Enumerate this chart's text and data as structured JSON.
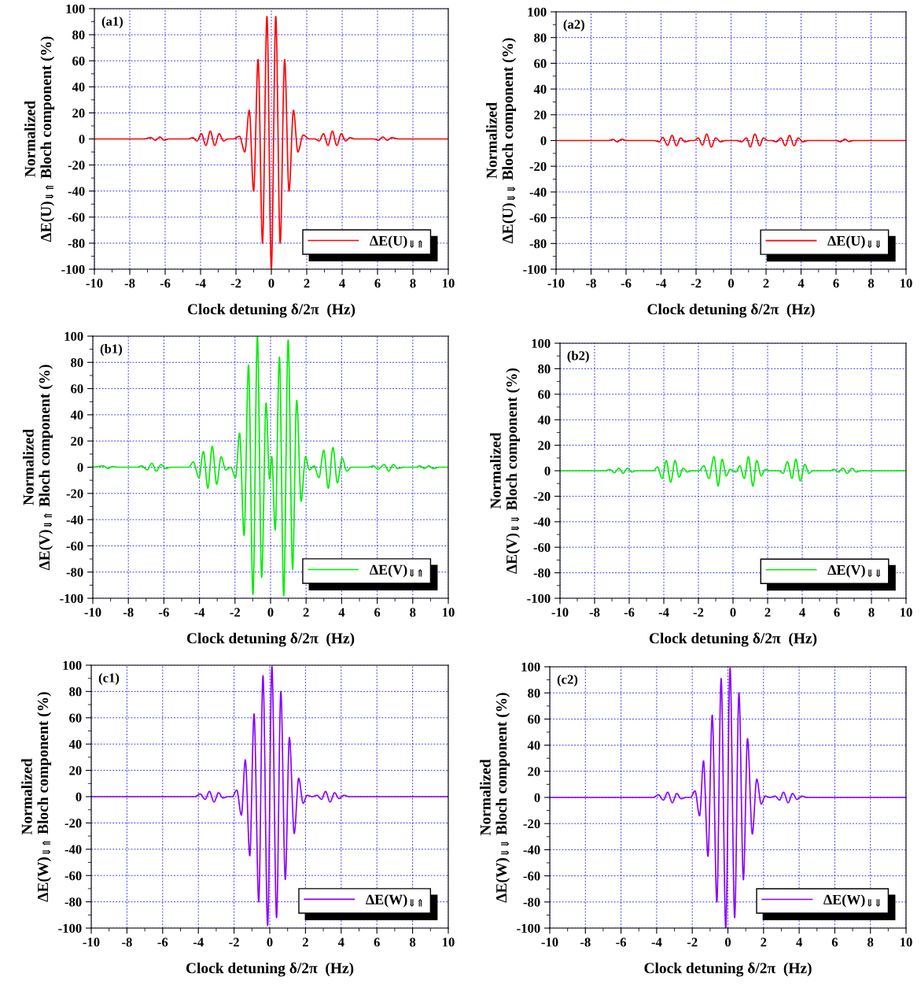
{
  "chart_data": [
    {
      "type": "line",
      "xlabel": "Clock detuning δ/2π  (Hz)",
      "ylabel": "Normalized\nΔE(U)$_{⇓⇑}$ Bloch component (%)",
      "xlim": [
        -10,
        10
      ],
      "xticks": [
        -10,
        -8,
        -6,
        -4,
        -2,
        0,
        2,
        4,
        6,
        8,
        10
      ],
      "ylim": [
        -100,
        100
      ],
      "yticks": [
        -100,
        -80,
        -60,
        -40,
        -20,
        0,
        20,
        40,
        60,
        80,
        100
      ],
      "grid": true,
      "legend": "lower right",
      "annotations": [
        "(a1)"
      ],
      "series": [
        {
          "name": "ΔE(U)$_{⇓⇑}$",
          "color": "#ff0000",
          "x": [
            -10,
            -7.2,
            -6.8,
            -6.55,
            -6.3,
            -6.05,
            -5.8,
            -4.7,
            -4.45,
            -4.2,
            -3.95,
            -3.7,
            -3.45,
            -3.2,
            -2.95,
            -2.7,
            -2.45,
            -2.15,
            -1.8,
            -1.5,
            -1.25,
            -1,
            -0.75,
            -0.5,
            -0.25,
            0,
            0.25,
            0.5,
            0.75,
            1,
            1.25,
            1.5,
            1.8,
            2.15,
            2.45,
            2.7,
            2.95,
            3.2,
            3.45,
            3.7,
            3.95,
            4.2,
            4.45,
            4.7,
            5.8,
            6.05,
            6.3,
            6.55,
            6.8,
            7.2,
            10
          ],
          "values": [
            0,
            0,
            1,
            -1,
            1.5,
            -1,
            0,
            0,
            1,
            -1.5,
            4,
            -5,
            6,
            -5,
            4,
            -1.5,
            0,
            0,
            2,
            -10,
            22,
            -40,
            61,
            -80,
            94,
            -100,
            94,
            -80,
            61,
            -40,
            22,
            -10,
            3,
            0,
            0,
            -1.5,
            4,
            -5,
            6,
            -5,
            4,
            -1.5,
            1,
            0,
            0,
            -1,
            1.5,
            -1,
            1,
            0,
            0
          ]
        }
      ]
    },
    {
      "type": "line",
      "xlabel": "Clock detuning δ/2π  (Hz)",
      "ylabel": "Normalized\nΔE(U)$_{⇓⇓}$ Bloch component (%)",
      "xlim": [
        -10,
        10
      ],
      "xticks": [
        -10,
        -8,
        -6,
        -4,
        -2,
        0,
        2,
        4,
        6,
        8,
        10
      ],
      "ylim": [
        -100,
        100
      ],
      "yticks": [
        -100,
        -80,
        -60,
        -40,
        -20,
        0,
        20,
        40,
        60,
        80,
        100
      ],
      "grid": true,
      "legend": "lower right",
      "annotations": [
        "(a2)"
      ],
      "series": [
        {
          "name": "ΔE(U)$_{⇓⇓}$",
          "color": "#ff0000",
          "x": [
            -10,
            -7,
            -6.75,
            -6.5,
            -6.25,
            -6,
            -4.4,
            -4.1,
            -3.9,
            -3.63,
            -3.37,
            -3.12,
            -2.88,
            -2.63,
            -2.3,
            -2.1,
            -1.88,
            -1.63,
            -1.39,
            -1.13,
            -0.88,
            -0.6,
            -0.3,
            0.3,
            0.6,
            0.88,
            1.1,
            1.36,
            1.63,
            1.85,
            2.1,
            2.3,
            2.6,
            2.85,
            3.1,
            3.34,
            3.6,
            3.84,
            4.1,
            4.4,
            6,
            6.25,
            6.5,
            6.75,
            7,
            10
          ],
          "values": [
            0,
            0,
            0.8,
            -1,
            1,
            0,
            0,
            -1,
            2.4,
            -3.7,
            4,
            -4,
            2,
            -1,
            0,
            0,
            2,
            -3.5,
            5,
            -5,
            2,
            -1,
            0,
            0,
            -1,
            2,
            -5,
            5,
            -4,
            2,
            0,
            0,
            -1,
            2,
            -4,
            4,
            -4,
            2,
            -1,
            0,
            0,
            -1,
            1,
            -0.8,
            0,
            0
          ]
        }
      ]
    },
    {
      "type": "line",
      "xlabel": "Clock detuning δ/2π  (Hz)",
      "ylabel": "Normalized\nΔE(V)$_{⇓⇑}$ Bloch component (%)",
      "xlim": [
        -10,
        10
      ],
      "xticks": [
        -10,
        -8,
        -6,
        -4,
        -2,
        0,
        2,
        4,
        6,
        8,
        10
      ],
      "ylim": [
        -100,
        100
      ],
      "yticks": [
        -100,
        -80,
        -60,
        -40,
        -20,
        0,
        20,
        40,
        60,
        80,
        100
      ],
      "grid": true,
      "legend": "lower right",
      "annotations": [
        "(b1)"
      ],
      "series": [
        {
          "name": "ΔE(V)$_{⇓⇑}$",
          "color": "#00ee00",
          "x": [
            -10,
            -9.4,
            -9.15,
            -8.9,
            -8.6,
            -7.5,
            -7.24,
            -6.94,
            -6.68,
            -6.43,
            -6.16,
            -5.9,
            -5.6,
            -4.6,
            -4.35,
            -4.03,
            -3.78,
            -3.53,
            -3.28,
            -3.03,
            -2.78,
            -2.53,
            -2.24,
            -1.97,
            -1.74,
            -1.49,
            -1.24,
            -0.99,
            -0.74,
            -0.5,
            -0.25,
            -0.06,
            0.07,
            0.26,
            0.5,
            0.74,
            0.99,
            1.24,
            1.47,
            1.72,
            1.97,
            2.18,
            2.45,
            2.72,
            2.99,
            3.25,
            3.51,
            3.76,
            4.03,
            4.29,
            4.55,
            5.5,
            5.78,
            6.05,
            6.4,
            6.65,
            6.91,
            7.15,
            7.5,
            8.2,
            8.4,
            8.65,
            8.9,
            9.15,
            9.5,
            10
          ],
          "values": [
            0,
            1,
            -1,
            0.5,
            0,
            0,
            1,
            -2,
            3,
            -3,
            2,
            -1,
            0,
            0,
            4,
            -8,
            12,
            -16,
            16,
            -13,
            8,
            -2,
            0,
            -8,
            26,
            -52,
            78,
            -97,
            100,
            -84,
            49,
            -9,
            8,
            -48,
            84,
            -98,
            97,
            -78,
            51,
            -26,
            8,
            -2,
            1,
            -8,
            13,
            -16,
            15,
            -12,
            7,
            -3,
            0,
            0,
            1,
            -1.5,
            2,
            -3,
            2,
            -1,
            0,
            0,
            1,
            -1,
            1,
            -1,
            0,
            0
          ]
        }
      ]
    },
    {
      "type": "line",
      "xlabel": "Clock detuning δ/2π  (Hz)",
      "ylabel": "Normalized\nΔE(V)$_{⇓⇓}$ Bloch component (%)",
      "xlim": [
        -10,
        10
      ],
      "xticks": [
        -10,
        -8,
        -6,
        -4,
        -2,
        0,
        2,
        4,
        6,
        8,
        10
      ],
      "ylim": [
        -100,
        100
      ],
      "yticks": [
        -100,
        -80,
        -60,
        -40,
        -20,
        0,
        20,
        40,
        60,
        80,
        100
      ],
      "grid": true,
      "legend": "lower right",
      "annotations": [
        "(b2)"
      ],
      "series": [
        {
          "name": "ΔE(V)$_{⇓⇓}$",
          "color": "#00ee00",
          "x": [
            -10,
            -7.4,
            -7.12,
            -6.85,
            -6.6,
            -6.35,
            -6.1,
            -5.85,
            -5.6,
            -4.6,
            -4.37,
            -4.1,
            -3.86,
            -3.6,
            -3.35,
            -3.12,
            -2.88,
            -2.64,
            -2.4,
            -1.95,
            -1.69,
            -1.39,
            -1.1,
            -0.86,
            -0.63,
            -0.39,
            -0.18,
            0.17,
            0.39,
            0.65,
            0.89,
            1.15,
            1.37,
            1.63,
            1.86,
            2.1,
            2.65,
            2.9,
            3.14,
            3.41,
            3.63,
            3.89,
            4.15,
            4.39,
            4.62,
            5.6,
            5.84,
            6.1,
            6.34,
            6.6,
            6.88,
            7.12,
            7.4,
            10
          ],
          "values": [
            0,
            0,
            1,
            -1.5,
            2,
            -2,
            2,
            -1,
            0,
            0,
            3,
            -6,
            8,
            -9,
            8,
            -5,
            2,
            -1,
            0,
            0,
            4,
            -6,
            11,
            -12,
            9,
            -4,
            1,
            -1,
            4,
            -6,
            11,
            -12,
            8,
            -4,
            1,
            0,
            0,
            -2,
            7,
            -6,
            9,
            -8,
            5,
            -2,
            0,
            0,
            1,
            -1,
            2,
            -2,
            2,
            -1,
            0,
            0
          ]
        }
      ]
    },
    {
      "type": "line",
      "xlabel": "Clock detuning δ/2π  (Hz)",
      "ylabel": "Normalized\nΔE(W)$_{⇓⇑}$ Bloch component (%)",
      "xlim": [
        -10,
        10
      ],
      "xticks": [
        -10,
        -8,
        -6,
        -4,
        -2,
        0,
        2,
        4,
        6,
        8,
        10
      ],
      "ylim": [
        -100,
        100
      ],
      "yticks": [
        -100,
        -80,
        -60,
        -40,
        -20,
        0,
        20,
        40,
        60,
        80,
        100
      ],
      "grid": true,
      "legend": "lower right",
      "annotations": [
        "(c1)"
      ],
      "series": [
        {
          "name": "ΔE(W)$_{⇓⇑}$",
          "color": "#8800ff",
          "x": [
            -10,
            -4.2,
            -3.9,
            -3.62,
            -3.38,
            -3.12,
            -2.87,
            -2.62,
            -2.35,
            -2.1,
            -1.85,
            -1.59,
            -1.37,
            -1.12,
            -0.88,
            -0.62,
            -0.38,
            -0.12,
            0.12,
            0.38,
            0.62,
            0.87,
            1.1,
            1.37,
            1.62,
            1.87,
            2.09,
            2.38,
            2.65,
            2.9,
            3.12,
            3.38,
            3.63,
            3.88,
            4.15,
            4.45,
            10
          ],
          "values": [
            0,
            0,
            2,
            -2,
            4,
            -4,
            3,
            -1,
            0,
            0,
            5,
            -14,
            28,
            -45,
            63,
            -80,
            92,
            -98,
            99,
            -92,
            80,
            -63,
            45,
            -28,
            14,
            -5,
            1,
            0,
            1,
            -2,
            4,
            -4,
            3,
            -1.5,
            1,
            0,
            0
          ]
        }
      ]
    },
    {
      "type": "line",
      "xlabel": "Clock detuning δ/2π  (Hz)",
      "ylabel": "Normalized\nΔE(W)$_{⇓⇓}$ Bloch component (%)",
      "xlim": [
        -10,
        10
      ],
      "xticks": [
        -10,
        -8,
        -6,
        -4,
        -2,
        0,
        2,
        4,
        6,
        8,
        10
      ],
      "ylim": [
        -100,
        100
      ],
      "yticks": [
        -100,
        -80,
        -60,
        -40,
        -20,
        0,
        20,
        40,
        60,
        80,
        100
      ],
      "grid": true,
      "legend": "lower right",
      "annotations": [
        "(c2)"
      ],
      "series": [
        {
          "name": "ΔE(W)$_{⇓⇓}$",
          "color": "#8800ff",
          "x": [
            -10,
            -4.2,
            -3.9,
            -3.62,
            -3.38,
            -3.12,
            -2.87,
            -2.62,
            -2.35,
            -2.1,
            -1.85,
            -1.59,
            -1.37,
            -1.12,
            -0.88,
            -0.62,
            -0.38,
            -0.12,
            0.12,
            0.38,
            0.62,
            0.87,
            1.1,
            1.37,
            1.62,
            1.87,
            2.09,
            2.38,
            2.65,
            2.9,
            3.12,
            3.38,
            3.63,
            3.88,
            4.15,
            4.45,
            10
          ],
          "values": [
            0,
            0,
            2,
            -2,
            4,
            -4,
            3,
            -1,
            0,
            0,
            5,
            -14,
            28,
            -45,
            63,
            -80,
            91,
            -100,
            99,
            -92,
            80,
            -63,
            45,
            -28,
            14,
            -5,
            1,
            0,
            1,
            -2,
            4,
            -4,
            3,
            -1.5,
            1,
            0,
            0
          ]
        }
      ]
    }
  ]
}
